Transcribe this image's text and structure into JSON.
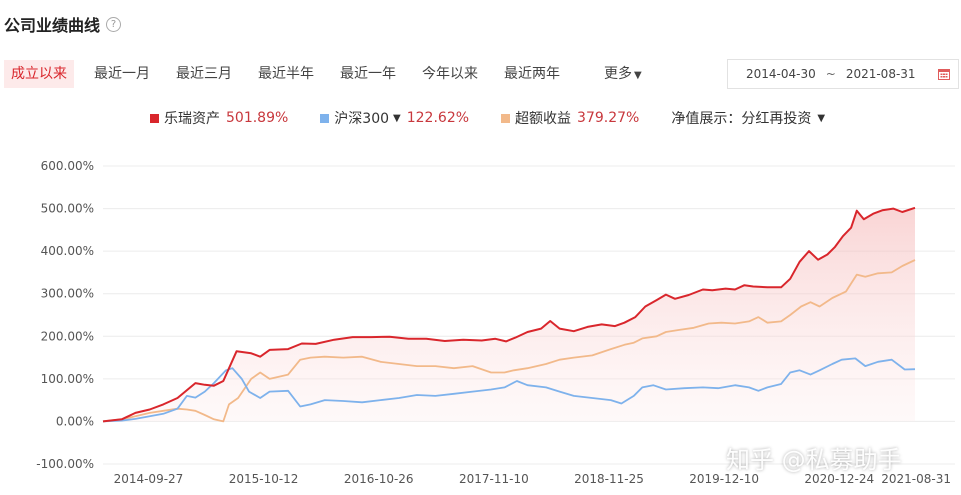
{
  "header": {
    "title": "公司业绩曲线"
  },
  "tabs": [
    {
      "label": "成立以来",
      "active": true
    },
    {
      "label": "最近一月"
    },
    {
      "label": "最近三月"
    },
    {
      "label": "最近半年"
    },
    {
      "label": "最近一年"
    },
    {
      "label": "今年以来"
    },
    {
      "label": "最近两年"
    }
  ],
  "more_label": "更多",
  "date_range": {
    "start": "2014-04-30",
    "separator": "~",
    "end": "2021-08-31"
  },
  "legend": {
    "series1_name": "乐瑞资产",
    "series1_value": "501.89%",
    "series2_name": "沪深300",
    "series2_value": "122.62%",
    "series3_name": "超额收益",
    "series3_value": "379.27%",
    "nav_setting": "净值展示：分红再投资"
  },
  "colors": {
    "series1": "#d9262c",
    "series2": "#7eb2ec",
    "series3": "#f2b98a",
    "active_tab_bg": "#fdeaea"
  },
  "watermark": "知乎 @私募助手",
  "chart_data": {
    "type": "line",
    "y_ticks": [
      "600.00%",
      "500.00%",
      "400.00%",
      "300.00%",
      "200.00%",
      "100.00%",
      "0.00%",
      "-100.00%"
    ],
    "ylim": [
      -100,
      600
    ],
    "x_tick_labels": [
      "2014-09-27",
      "2015-10-12",
      "2016-10-26",
      "2017-11-10",
      "2018-11-25",
      "2019-12-10",
      "2020-12-24",
      "2021-08-31"
    ],
    "x_tick_dates": [
      "2014-09-27",
      "2015-10-12",
      "2016-10-26",
      "2017-11-10",
      "2018-11-25",
      "2019-12-10",
      "2020-12-24",
      "2021-08-31"
    ],
    "x_range": [
      "2014-04-30",
      "2021-08-31"
    ],
    "series": [
      {
        "name": "乐瑞资产",
        "color": "#d9262c",
        "fill": true,
        "points": [
          [
            "2014-04-30",
            0
          ],
          [
            "2014-07-01",
            5
          ],
          [
            "2014-08-15",
            20
          ],
          [
            "2014-10-01",
            28
          ],
          [
            "2014-11-15",
            40
          ],
          [
            "2015-01-01",
            55
          ],
          [
            "2015-03-01",
            90
          ],
          [
            "2015-04-01",
            86
          ],
          [
            "2015-05-01",
            84
          ],
          [
            "2015-06-01",
            95
          ],
          [
            "2015-07-15",
            165
          ],
          [
            "2015-09-01",
            160
          ],
          [
            "2015-10-01",
            152
          ],
          [
            "2015-11-01",
            168
          ],
          [
            "2016-01-01",
            170
          ],
          [
            "2016-02-15",
            183
          ],
          [
            "2016-04-01",
            182
          ],
          [
            "2016-06-01",
            192
          ],
          [
            "2016-08-01",
            198
          ],
          [
            "2016-10-01",
            198
          ],
          [
            "2016-12-01",
            199
          ],
          [
            "2017-02-01",
            194
          ],
          [
            "2017-04-01",
            194
          ],
          [
            "2017-06-01",
            189
          ],
          [
            "2017-08-01",
            192
          ],
          [
            "2017-10-01",
            190
          ],
          [
            "2017-11-15",
            194
          ],
          [
            "2017-12-20",
            188
          ],
          [
            "2018-01-20",
            197
          ],
          [
            "2018-03-01",
            210
          ],
          [
            "2018-04-15",
            218
          ],
          [
            "2018-05-15",
            236
          ],
          [
            "2018-06-15",
            218
          ],
          [
            "2018-08-01",
            212
          ],
          [
            "2018-09-15",
            222
          ],
          [
            "2018-11-01",
            228
          ],
          [
            "2018-12-15",
            224
          ],
          [
            "2019-01-15",
            232
          ],
          [
            "2019-02-20",
            245
          ],
          [
            "2019-03-25",
            270
          ],
          [
            "2019-05-01",
            285
          ],
          [
            "2019-06-01",
            298
          ],
          [
            "2019-07-01",
            288
          ],
          [
            "2019-08-15",
            297
          ],
          [
            "2019-10-01",
            310
          ],
          [
            "2019-11-01",
            308
          ],
          [
            "2019-12-15",
            312
          ],
          [
            "2020-01-15",
            310
          ],
          [
            "2020-02-15",
            320
          ],
          [
            "2020-03-15",
            317
          ],
          [
            "2020-05-01",
            315
          ],
          [
            "2020-06-15",
            315
          ],
          [
            "2020-07-15",
            335
          ],
          [
            "2020-08-15",
            375
          ],
          [
            "2020-09-15",
            400
          ],
          [
            "2020-10-15",
            380
          ],
          [
            "2020-11-15",
            392
          ],
          [
            "2020-12-10",
            410
          ],
          [
            "2021-01-05",
            435
          ],
          [
            "2021-02-01",
            455
          ],
          [
            "2021-02-20",
            495
          ],
          [
            "2021-03-15",
            475
          ],
          [
            "2021-04-15",
            488
          ],
          [
            "2021-05-15",
            496
          ],
          [
            "2021-06-20",
            500
          ],
          [
            "2021-07-20",
            492
          ],
          [
            "2021-08-31",
            501.89
          ]
        ]
      },
      {
        "name": "沪深300",
        "color": "#7eb2ec",
        "fill": false,
        "points": [
          [
            "2014-04-30",
            0
          ],
          [
            "2014-07-01",
            2
          ],
          [
            "2014-08-15",
            6
          ],
          [
            "2014-10-01",
            12
          ],
          [
            "2014-11-15",
            18
          ],
          [
            "2015-01-01",
            30
          ],
          [
            "2015-02-01",
            60
          ],
          [
            "2015-03-01",
            56
          ],
          [
            "2015-04-01",
            70
          ],
          [
            "2015-05-01",
            90
          ],
          [
            "2015-06-10",
            120
          ],
          [
            "2015-07-01",
            125
          ],
          [
            "2015-08-01",
            100
          ],
          [
            "2015-08-25",
            70
          ],
          [
            "2015-10-01",
            55
          ],
          [
            "2015-11-01",
            70
          ],
          [
            "2016-01-01",
            72
          ],
          [
            "2016-02-10",
            35
          ],
          [
            "2016-03-15",
            40
          ],
          [
            "2016-05-01",
            50
          ],
          [
            "2016-07-01",
            48
          ],
          [
            "2016-09-01",
            45
          ],
          [
            "2016-11-01",
            50
          ],
          [
            "2017-01-01",
            55
          ],
          [
            "2017-03-01",
            62
          ],
          [
            "2017-05-01",
            60
          ],
          [
            "2017-07-01",
            65
          ],
          [
            "2017-09-01",
            70
          ],
          [
            "2017-11-01",
            75
          ],
          [
            "2017-12-15",
            80
          ],
          [
            "2018-01-25",
            95
          ],
          [
            "2018-03-01",
            85
          ],
          [
            "2018-05-01",
            80
          ],
          [
            "2018-06-15",
            70
          ],
          [
            "2018-08-01",
            60
          ],
          [
            "2018-10-01",
            55
          ],
          [
            "2018-12-01",
            50
          ],
          [
            "2019-01-05",
            42
          ],
          [
            "2019-02-15",
            60
          ],
          [
            "2019-03-15",
            80
          ],
          [
            "2019-04-20",
            85
          ],
          [
            "2019-06-01",
            75
          ],
          [
            "2019-08-01",
            78
          ],
          [
            "2019-10-01",
            80
          ],
          [
            "2019-11-20",
            78
          ],
          [
            "2020-01-15",
            85
          ],
          [
            "2020-03-01",
            80
          ],
          [
            "2020-04-01",
            72
          ],
          [
            "2020-05-01",
            80
          ],
          [
            "2020-06-15",
            88
          ],
          [
            "2020-07-15",
            115
          ],
          [
            "2020-08-15",
            120
          ],
          [
            "2020-09-20",
            110
          ],
          [
            "2020-10-20",
            120
          ],
          [
            "2020-12-01",
            135
          ],
          [
            "2021-01-01",
            145
          ],
          [
            "2021-02-15",
            148
          ],
          [
            "2021-03-20",
            130
          ],
          [
            "2021-05-01",
            140
          ],
          [
            "2021-06-15",
            145
          ],
          [
            "2021-07-28",
            122
          ],
          [
            "2021-08-31",
            122.62
          ]
        ]
      },
      {
        "name": "超额收益",
        "color": "#f2b98a",
        "fill": false,
        "points": [
          [
            "2014-04-30",
            0
          ],
          [
            "2014-07-01",
            5
          ],
          [
            "2014-08-15",
            12
          ],
          [
            "2014-10-01",
            20
          ],
          [
            "2014-11-15",
            25
          ],
          [
            "2015-01-01",
            30
          ],
          [
            "2015-02-01",
            28
          ],
          [
            "2015-03-01",
            25
          ],
          [
            "2015-04-01",
            15
          ],
          [
            "2015-05-01",
            5
          ],
          [
            "2015-06-01",
            0
          ],
          [
            "2015-06-20",
            40
          ],
          [
            "2015-07-20",
            55
          ],
          [
            "2015-09-01",
            100
          ],
          [
            "2015-10-01",
            115
          ],
          [
            "2015-11-01",
            100
          ],
          [
            "2016-01-01",
            110
          ],
          [
            "2016-02-10",
            145
          ],
          [
            "2016-03-15",
            150
          ],
          [
            "2016-05-01",
            152
          ],
          [
            "2016-07-01",
            150
          ],
          [
            "2016-09-01",
            152
          ],
          [
            "2016-11-01",
            140
          ],
          [
            "2017-01-01",
            135
          ],
          [
            "2017-03-01",
            130
          ],
          [
            "2017-05-01",
            130
          ],
          [
            "2017-07-01",
            125
          ],
          [
            "2017-09-01",
            130
          ],
          [
            "2017-11-01",
            115
          ],
          [
            "2017-12-15",
            115
          ],
          [
            "2018-01-15",
            120
          ],
          [
            "2018-03-01",
            125
          ],
          [
            "2018-05-01",
            135
          ],
          [
            "2018-06-15",
            145
          ],
          [
            "2018-08-01",
            150
          ],
          [
            "2018-10-01",
            155
          ],
          [
            "2018-12-01",
            170
          ],
          [
            "2019-01-15",
            180
          ],
          [
            "2019-02-15",
            185
          ],
          [
            "2019-03-15",
            195
          ],
          [
            "2019-05-01",
            200
          ],
          [
            "2019-06-01",
            210
          ],
          [
            "2019-07-15",
            215
          ],
          [
            "2019-09-01",
            220
          ],
          [
            "2019-10-20",
            230
          ],
          [
            "2019-12-01",
            232
          ],
          [
            "2020-01-15",
            230
          ],
          [
            "2020-03-01",
            235
          ],
          [
            "2020-04-01",
            245
          ],
          [
            "2020-05-01",
            232
          ],
          [
            "2020-06-15",
            235
          ],
          [
            "2020-07-15",
            250
          ],
          [
            "2020-08-20",
            270
          ],
          [
            "2020-09-20",
            280
          ],
          [
            "2020-10-20",
            270
          ],
          [
            "2020-12-01",
            290
          ],
          [
            "2021-01-15",
            305
          ],
          [
            "2021-02-20",
            345
          ],
          [
            "2021-03-20",
            340
          ],
          [
            "2021-05-01",
            348
          ],
          [
            "2021-06-15",
            350
          ],
          [
            "2021-07-20",
            365
          ],
          [
            "2021-08-31",
            379.27
          ]
        ]
      }
    ]
  }
}
